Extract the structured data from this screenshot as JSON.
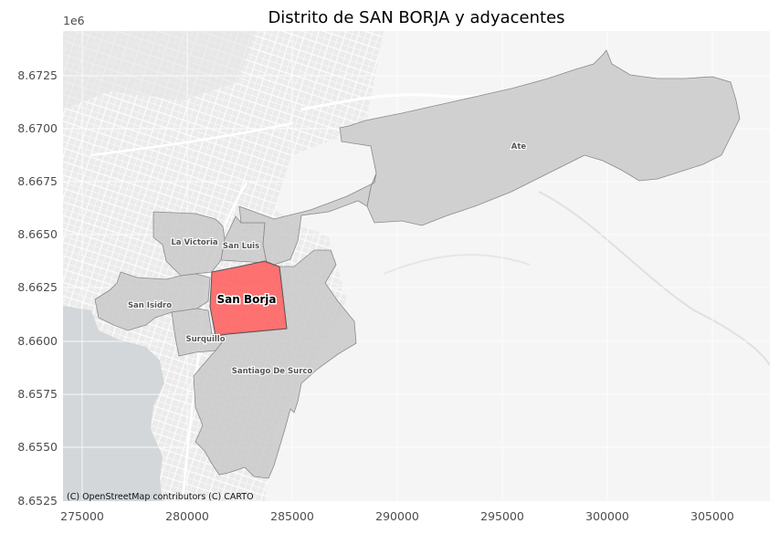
{
  "map": {
    "title": "Distrito de SAN BORJA y adyacentes",
    "offset_label": "1e6",
    "attribution": "(C) OpenStreetMap contributors (C) CARTO",
    "x_ticks": [
      "275000",
      "280000",
      "285000",
      "290000",
      "295000",
      "300000",
      "305000"
    ],
    "y_ticks": [
      "8.6725",
      "8.6700",
      "8.6675",
      "8.6650",
      "8.6625",
      "8.6600",
      "8.6575",
      "8.6550",
      "8.6525"
    ],
    "colors": {
      "highlight": "#ff5a5a",
      "neighbors": "#c9c9c9",
      "ocean": "#d4d8db",
      "basemap": "#f2f2f2"
    },
    "districts": [
      {
        "key": "ate",
        "label": "Ate",
        "highlight": false
      },
      {
        "key": "la-victoria",
        "label": "La Victoria",
        "highlight": false
      },
      {
        "key": "san-luis",
        "label": "San Luis",
        "highlight": false
      },
      {
        "key": "san-isidro",
        "label": "San Isidro",
        "highlight": false
      },
      {
        "key": "san-borja",
        "label": "San Borja",
        "highlight": true
      },
      {
        "key": "surquillo",
        "label": "Surquillo",
        "highlight": false
      },
      {
        "key": "santiago-de-surco",
        "label": "Santiago De Surco",
        "highlight": false
      }
    ]
  }
}
